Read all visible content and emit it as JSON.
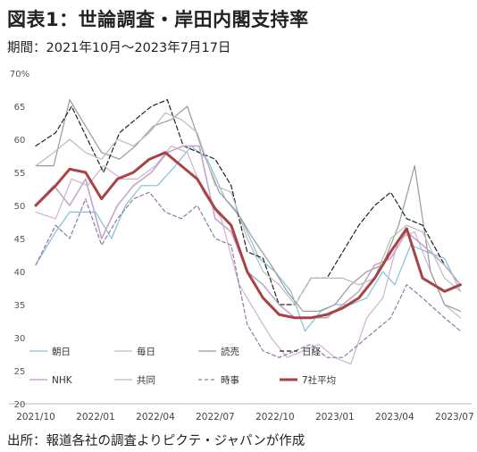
{
  "header": {
    "title": "図表1：世論調査・岸田内閣支持率",
    "subtitle": "期間：2021年10月～2023年7月17日"
  },
  "footer": {
    "source": "出所：報道各社の調査よりピクテ・ジャパンが作成"
  },
  "chart_data": {
    "type": "line",
    "title": "",
    "xlabel": "",
    "ylabel": "",
    "y_unit_label": "%",
    "ylim": [
      20,
      70
    ],
    "y_ticks": [
      20,
      25,
      30,
      35,
      40,
      45,
      50,
      55,
      60,
      65,
      70
    ],
    "y_top_label": "70%",
    "xlim": [
      0,
      21.5
    ],
    "x_ticks": [
      {
        "x": 0,
        "label": "2021/10"
      },
      {
        "x": 3,
        "label": "2022/01"
      },
      {
        "x": 6,
        "label": "2022/04"
      },
      {
        "x": 9,
        "label": "2022/07"
      },
      {
        "x": 12,
        "label": "2022/10"
      },
      {
        "x": 15,
        "label": "2023/01"
      },
      {
        "x": 18,
        "label": "2023/04"
      },
      {
        "x": 21,
        "label": "2023/07"
      }
    ],
    "grid": false,
    "legend": "bottom-left",
    "series": [
      {
        "name": "朝日",
        "color": "#7ec2d8",
        "width": 1.2,
        "dash": "",
        "points": [
          [
            0,
            41
          ],
          [
            1,
            46
          ],
          [
            1.7,
            49
          ],
          [
            3,
            49
          ],
          [
            3.8,
            45
          ],
          [
            4.5,
            50
          ],
          [
            5.3,
            53
          ],
          [
            6.1,
            53
          ],
          [
            7,
            56
          ],
          [
            7.8,
            59
          ],
          [
            8.6,
            57
          ],
          [
            9.5,
            51
          ],
          [
            10.3,
            48
          ],
          [
            11.2,
            42
          ],
          [
            12,
            40
          ],
          [
            12.8,
            37
          ],
          [
            13.5,
            31
          ],
          [
            14.3,
            34
          ],
          [
            15,
            35
          ],
          [
            15.8,
            35
          ],
          [
            16.6,
            36
          ],
          [
            17.4,
            40
          ],
          [
            18,
            38
          ],
          [
            18.8,
            44
          ],
          [
            19.6,
            43
          ],
          [
            20.5,
            42
          ],
          [
            21.3,
            37
          ]
        ]
      },
      {
        "name": "毎日",
        "color": "#cdb2cf",
        "width": 1.2,
        "dash": "",
        "points": [
          [
            0,
            49
          ],
          [
            1,
            48
          ],
          [
            1.8,
            54
          ],
          [
            2.6,
            53
          ],
          [
            3.4,
            56
          ],
          [
            4.3,
            54
          ],
          [
            5.1,
            54
          ],
          [
            6,
            56
          ],
          [
            6.8,
            59
          ],
          [
            7.6,
            58
          ],
          [
            8.4,
            52
          ],
          [
            9.3,
            48
          ],
          [
            10.2,
            38
          ],
          [
            11,
            34
          ],
          [
            11.8,
            30
          ],
          [
            12.6,
            27
          ],
          [
            13.4,
            28
          ],
          [
            14.2,
            29
          ],
          [
            15,
            27
          ],
          [
            15.8,
            26
          ],
          [
            16.6,
            33
          ],
          [
            17.4,
            36
          ],
          [
            18.2,
            45
          ],
          [
            19,
            46
          ],
          [
            19.8,
            40
          ],
          [
            20.5,
            35
          ],
          [
            21.3,
            33
          ]
        ]
      },
      {
        "name": "読売",
        "color": "#999999",
        "width": 1.2,
        "dash": "",
        "points": [
          [
            0,
            56
          ],
          [
            0.9,
            56
          ],
          [
            1.7,
            66
          ],
          [
            2.5,
            62
          ],
          [
            3.3,
            58
          ],
          [
            4.2,
            57
          ],
          [
            5,
            59
          ],
          [
            5.9,
            62
          ],
          [
            6.8,
            63
          ],
          [
            7.6,
            65
          ],
          [
            8.4,
            58
          ],
          [
            9.2,
            52
          ],
          [
            10.1,
            49
          ],
          [
            10.9,
            45
          ],
          [
            11.8,
            41
          ],
          [
            12.6,
            37
          ],
          [
            13.4,
            34
          ],
          [
            14.2,
            34
          ],
          [
            15,
            35
          ],
          [
            15.8,
            38
          ],
          [
            16.6,
            40
          ],
          [
            17.4,
            41
          ],
          [
            18.2,
            47
          ],
          [
            19,
            56
          ],
          [
            19.8,
            40
          ],
          [
            20.5,
            35
          ],
          [
            21.3,
            34
          ]
        ]
      },
      {
        "name": "日経",
        "color": "#222222",
        "width": 1.2,
        "dash": "5,3",
        "points": [
          [
            0,
            59
          ],
          [
            1,
            61
          ],
          [
            1.8,
            65
          ],
          [
            2.6,
            60
          ],
          [
            3.4,
            55
          ],
          [
            4.2,
            61
          ],
          [
            5,
            63
          ],
          [
            5.8,
            65
          ],
          [
            6.6,
            66
          ],
          [
            7.4,
            59
          ],
          [
            8.2,
            58
          ],
          [
            9,
            57
          ],
          [
            9.8,
            53
          ],
          [
            10.6,
            43
          ],
          [
            11.4,
            42
          ],
          [
            12.2,
            35
          ],
          [
            13,
            35
          ],
          [
            13.8,
            39
          ],
          [
            14.6,
            39
          ],
          [
            15.4,
            43
          ],
          [
            16.2,
            47
          ],
          [
            17,
            50
          ],
          [
            17.8,
            52
          ],
          [
            18.6,
            48
          ],
          [
            19.4,
            47
          ],
          [
            20.5,
            41
          ],
          [
            21.3,
            38
          ]
        ]
      },
      {
        "name": "NHK",
        "color": "#c6a5cd",
        "width": 1.6,
        "dash": "",
        "points": [
          [
            0,
            50
          ],
          [
            0.9,
            53
          ],
          [
            1.7,
            50
          ],
          [
            2.5,
            54
          ],
          [
            3.3,
            45
          ],
          [
            4.1,
            50
          ],
          [
            4.9,
            53
          ],
          [
            5.8,
            55
          ],
          [
            6.6,
            58
          ],
          [
            7.4,
            59
          ],
          [
            8.2,
            59
          ],
          [
            9,
            48
          ],
          [
            9.8,
            46
          ],
          [
            10.6,
            40
          ],
          [
            11.4,
            38
          ],
          [
            12.2,
            35
          ],
          [
            13,
            33
          ],
          [
            13.8,
            33
          ],
          [
            14.6,
            33
          ],
          [
            15.4,
            35
          ],
          [
            16.2,
            37
          ],
          [
            17,
            41
          ],
          [
            17.8,
            42
          ],
          [
            18.6,
            46
          ],
          [
            19.4,
            44
          ],
          [
            20.5,
            41
          ],
          [
            21.3,
            38
          ]
        ]
      },
      {
        "name": "共同",
        "color": "#bbbbbb",
        "width": 1.2,
        "dash": "",
        "points": [
          [
            0,
            56
          ],
          [
            0.9,
            58
          ],
          [
            1.7,
            60
          ],
          [
            2.5,
            58
          ],
          [
            3.3,
            57
          ],
          [
            4.1,
            60
          ],
          [
            4.9,
            59
          ],
          [
            5.7,
            61
          ],
          [
            6.5,
            64
          ],
          [
            7.3,
            63
          ],
          [
            8.1,
            61
          ],
          [
            9,
            53
          ],
          [
            9.8,
            52
          ],
          [
            10.6,
            45
          ],
          [
            11.4,
            40
          ],
          [
            12.2,
            38
          ],
          [
            13,
            35
          ],
          [
            13.8,
            39
          ],
          [
            14.6,
            39
          ],
          [
            15.4,
            39
          ],
          [
            16.2,
            38
          ],
          [
            17,
            39
          ],
          [
            17.8,
            45
          ],
          [
            18.6,
            47
          ],
          [
            19.4,
            46
          ],
          [
            20.5,
            39
          ],
          [
            21.3,
            37
          ]
        ]
      },
      {
        "name": "時事",
        "color": "#8a7aa6",
        "width": 1.2,
        "dash": "4,3",
        "points": [
          [
            0,
            41
          ],
          [
            1,
            47
          ],
          [
            1.7,
            45
          ],
          [
            2.5,
            51
          ],
          [
            3.3,
            44
          ],
          [
            4.1,
            48
          ],
          [
            4.9,
            51
          ],
          [
            5.7,
            52
          ],
          [
            6.5,
            49
          ],
          [
            7.3,
            48
          ],
          [
            8.1,
            50
          ],
          [
            9,
            45
          ],
          [
            9.8,
            44
          ],
          [
            10.6,
            32
          ],
          [
            11.4,
            28
          ],
          [
            12.2,
            27
          ],
          [
            13,
            28
          ],
          [
            13.8,
            29
          ],
          [
            14.6,
            27
          ],
          [
            15.4,
            27
          ],
          [
            16.2,
            29
          ],
          [
            17,
            31
          ],
          [
            17.8,
            33
          ],
          [
            18.6,
            38
          ],
          [
            19.4,
            36
          ],
          [
            20.5,
            33
          ],
          [
            21.3,
            31
          ]
        ]
      },
      {
        "name": "7社平均",
        "color": "#a94244",
        "width": 3,
        "dash": "",
        "points": [
          [
            0,
            50
          ],
          [
            1,
            53
          ],
          [
            1.7,
            55.5
          ],
          [
            2.5,
            55
          ],
          [
            3.3,
            51
          ],
          [
            4.1,
            54
          ],
          [
            4.9,
            55
          ],
          [
            5.7,
            57
          ],
          [
            6.5,
            58
          ],
          [
            7.3,
            56
          ],
          [
            8.1,
            54
          ],
          [
            9,
            49.5
          ],
          [
            9.8,
            47
          ],
          [
            10.6,
            40
          ],
          [
            11.4,
            36
          ],
          [
            12.2,
            33.5
          ],
          [
            13,
            33
          ],
          [
            13.8,
            33
          ],
          [
            14.6,
            33.5
          ],
          [
            15.4,
            34.5
          ],
          [
            16.2,
            36
          ],
          [
            17,
            39
          ],
          [
            17.8,
            43
          ],
          [
            18.6,
            46.5
          ],
          [
            19.4,
            39
          ],
          [
            20.5,
            37
          ],
          [
            21.3,
            38
          ]
        ]
      }
    ]
  }
}
